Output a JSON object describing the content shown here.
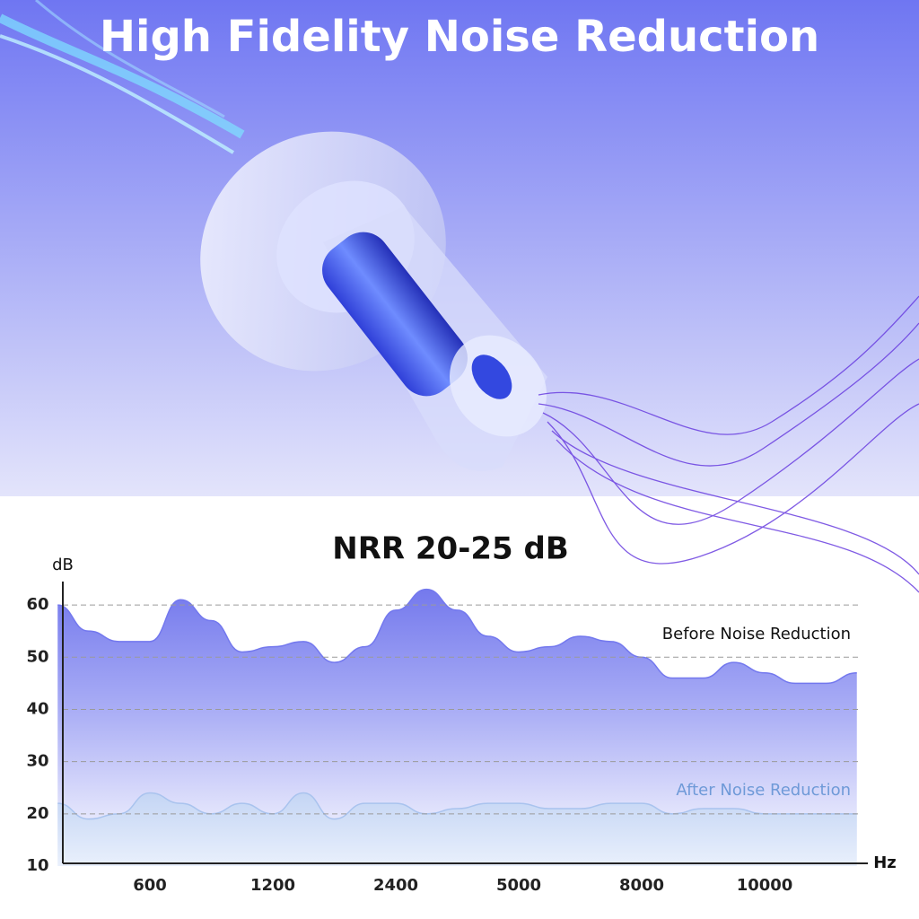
{
  "header": {
    "title": "High Fidelity Noise Reduction"
  },
  "chart_data": {
    "type": "area",
    "title": "NRR 20-25 dB",
    "y_label": "dB",
    "x_label": "Hz",
    "categories": [
      null,
      null,
      null,
      "600",
      null,
      null,
      null,
      "1200",
      null,
      null,
      null,
      "2400",
      null,
      null,
      null,
      "5000",
      null,
      null,
      null,
      "8000",
      null,
      null,
      null,
      "10000",
      null,
      null,
      null
    ],
    "series": [
      {
        "name": "Before Noise Reduction",
        "color": "#7378ee",
        "values": [
          60,
          55,
          53,
          53,
          61,
          57,
          51,
          52,
          53,
          49,
          52,
          59,
          63,
          59,
          54,
          51,
          52,
          54,
          53,
          50,
          46,
          46,
          49,
          47,
          45,
          45,
          47
        ]
      },
      {
        "name": "After Noise Reduction",
        "color": "#a9c3ee",
        "values": [
          22,
          19,
          20,
          24,
          22,
          20,
          22,
          20,
          24,
          19,
          22,
          22,
          20,
          21,
          22,
          22,
          21,
          21,
          22,
          22,
          20,
          21,
          21,
          20,
          20,
          20,
          20
        ]
      }
    ],
    "ylim": [
      10,
      65
    ],
    "yticks": [
      10,
      20,
      30,
      40,
      50,
      60
    ],
    "grid": true
  }
}
